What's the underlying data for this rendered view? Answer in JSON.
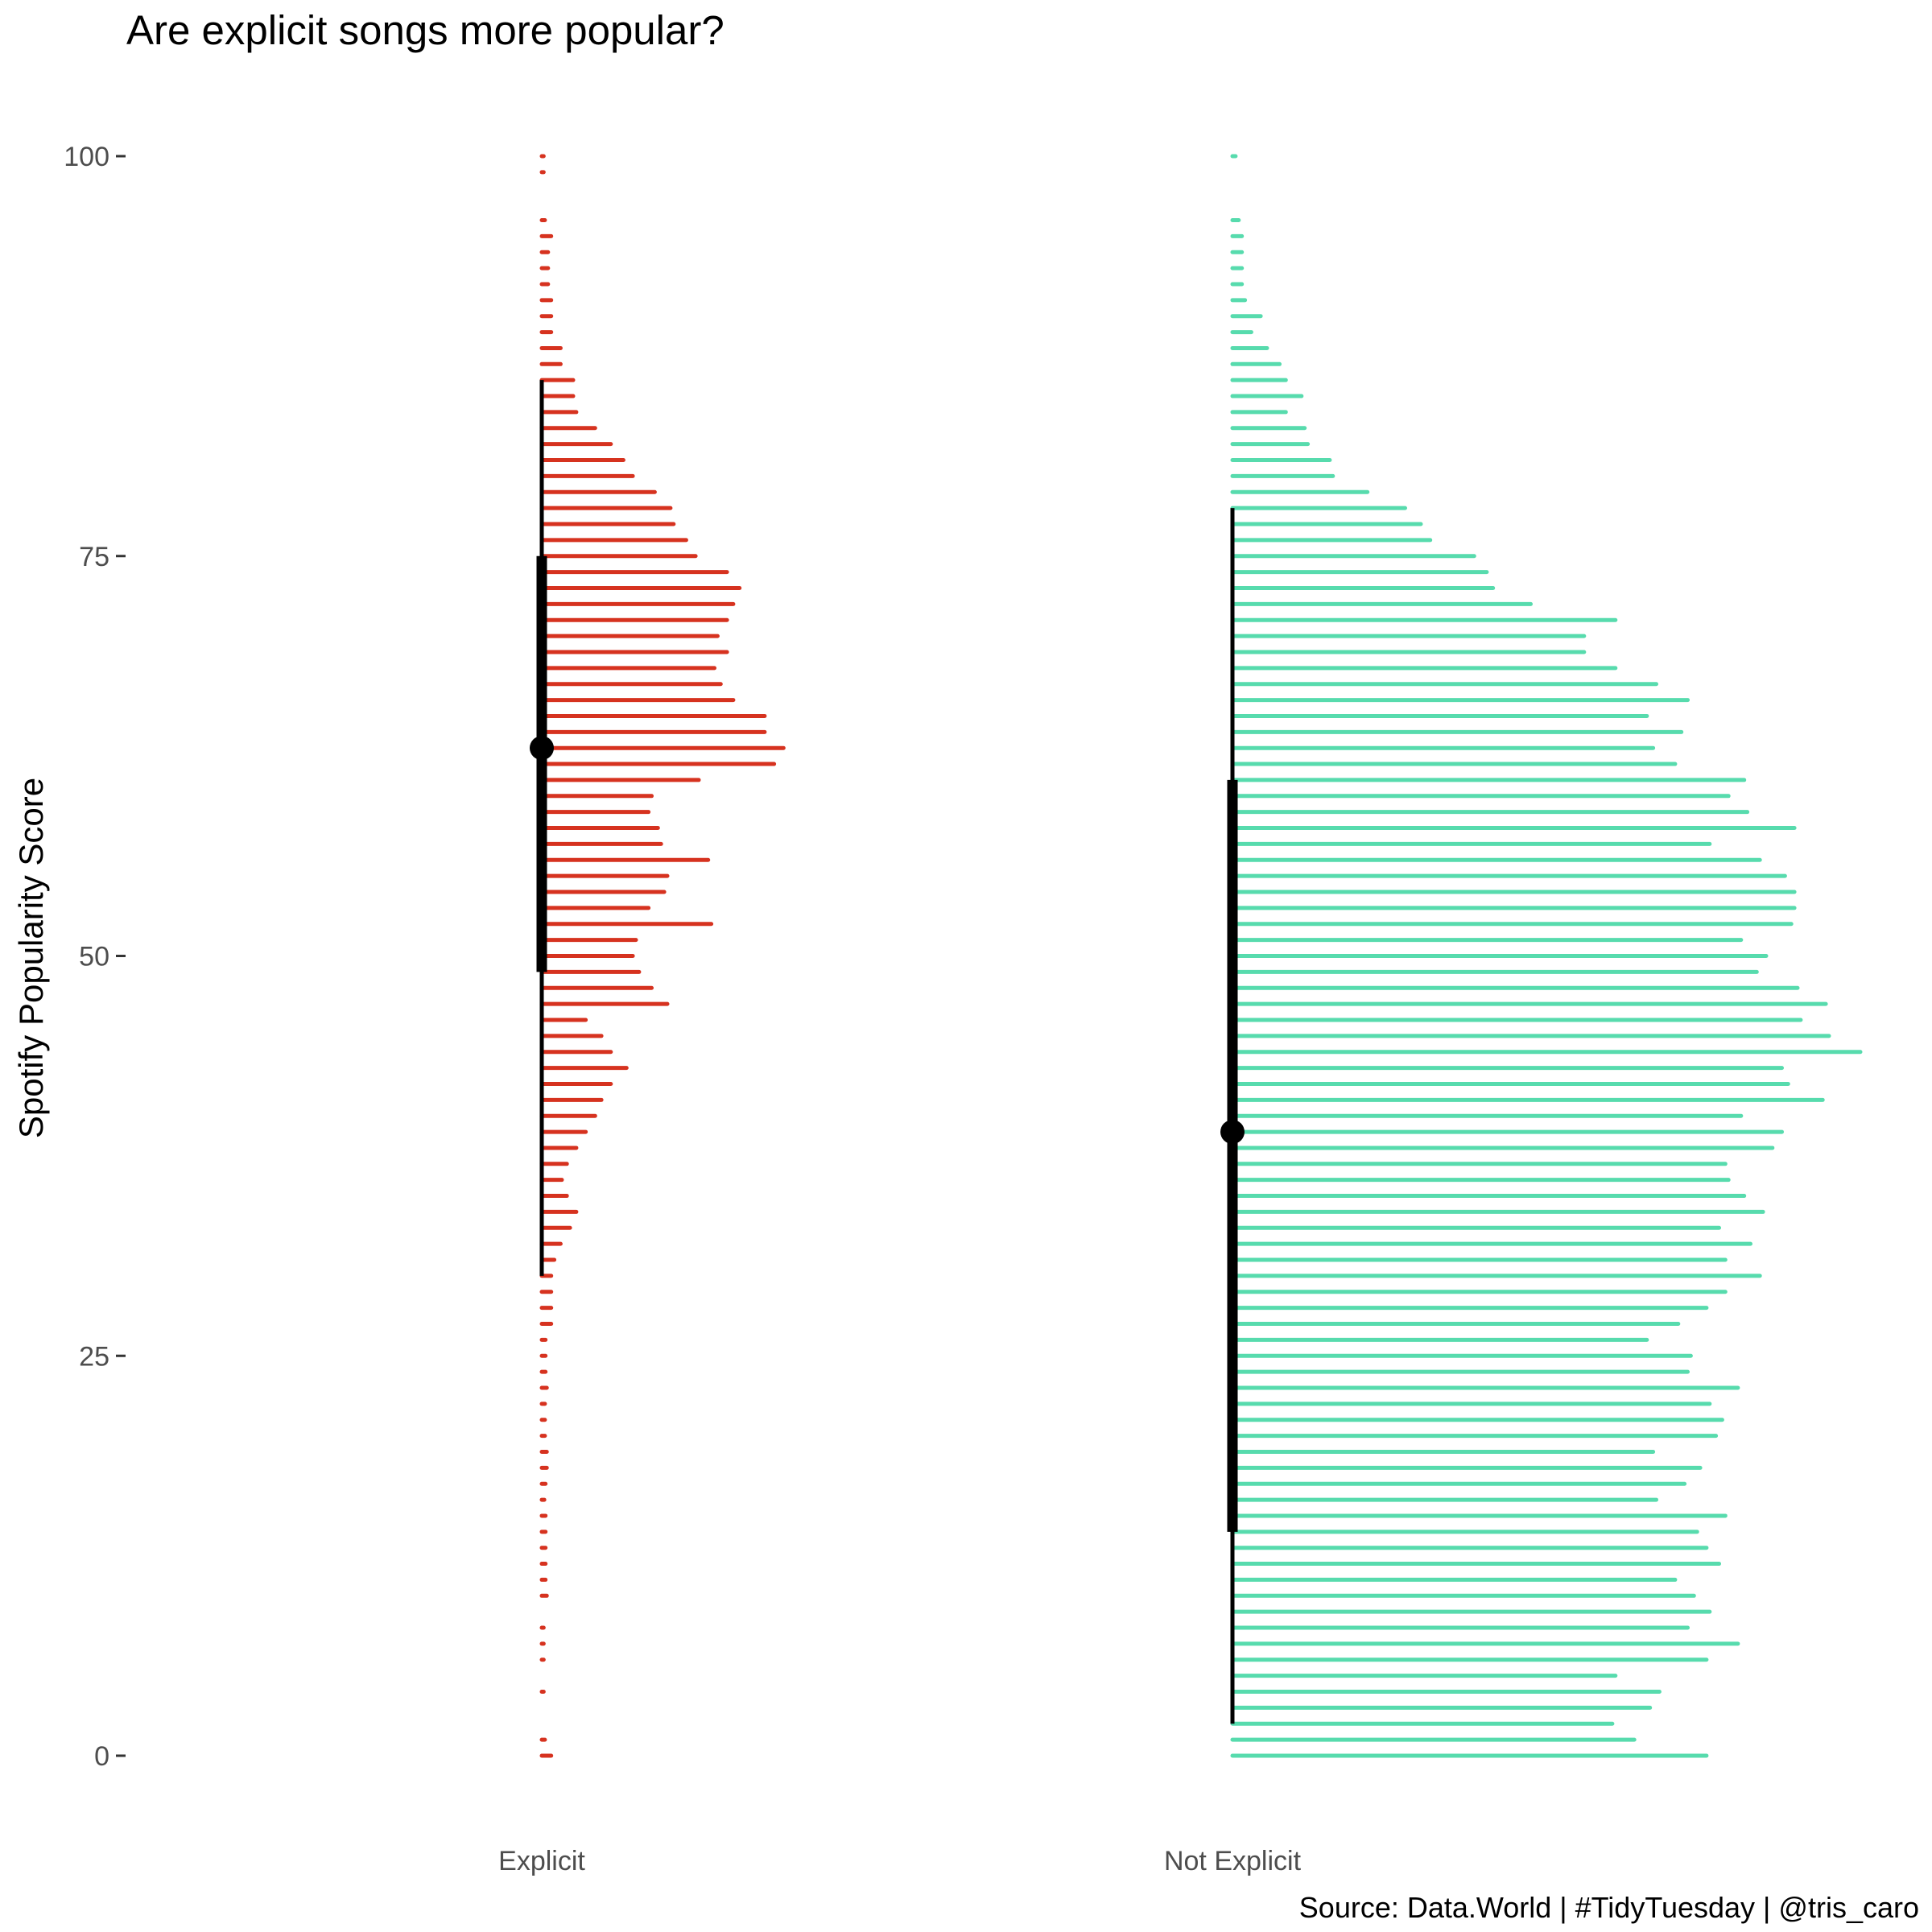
{
  "chart_data": {
    "type": "bar",
    "title": "Are explicit songs more popular?",
    "caption": "Source: Data.World | #TidyTuesday | @tris_caro",
    "ylabel": "Spotify Popularity Score",
    "xlabel": "",
    "ylim": [
      0,
      100
    ],
    "yticks": [
      "0",
      "25",
      "50",
      "75",
      "100"
    ],
    "grid": false,
    "legend": "none",
    "categories": [
      "Explicit",
      "Not Explicit"
    ],
    "bar_scale_max": 100,
    "series": [
      {
        "category": "Explicit",
        "color": "#d6321f",
        "median": 63,
        "interval_66": [
          49,
          75
        ],
        "interval_95": [
          30,
          86
        ],
        "bins": [
          [
            0,
            1.5
          ],
          [
            1,
            0.5
          ],
          [
            4,
            0.3
          ],
          [
            6,
            0.3
          ],
          [
            7,
            0.3
          ],
          [
            8,
            0.3
          ],
          [
            10,
            0.8
          ],
          [
            11,
            0.6
          ],
          [
            12,
            0.6
          ],
          [
            13,
            0.6
          ],
          [
            14,
            0.6
          ],
          [
            15,
            0.6
          ],
          [
            16,
            0.4
          ],
          [
            17,
            0.6
          ],
          [
            18,
            0.8
          ],
          [
            19,
            0.8
          ],
          [
            20,
            0.5
          ],
          [
            21,
            0.5
          ],
          [
            22,
            0.5
          ],
          [
            23,
            0.8
          ],
          [
            24,
            0.6
          ],
          [
            25,
            0.6
          ],
          [
            26,
            0.6
          ],
          [
            27,
            1.5
          ],
          [
            28,
            1.5
          ],
          [
            29,
            1.5
          ],
          [
            30,
            1.5
          ],
          [
            31,
            2.0
          ],
          [
            32,
            3.0
          ],
          [
            33,
            4.5
          ],
          [
            34,
            5.5
          ],
          [
            35,
            4.0
          ],
          [
            36,
            3.2
          ],
          [
            37,
            4.0
          ],
          [
            38,
            5.5
          ],
          [
            39,
            7.0
          ],
          [
            40,
            8.5
          ],
          [
            41,
            9.5
          ],
          [
            42,
            11.0
          ],
          [
            43,
            13.5
          ],
          [
            44,
            11.0
          ],
          [
            45,
            9.5
          ],
          [
            46,
            7.0
          ],
          [
            47,
            20.0
          ],
          [
            48,
            17.5
          ],
          [
            49,
            15.5
          ],
          [
            50,
            14.5
          ],
          [
            51,
            15.0
          ],
          [
            52,
            27.0
          ],
          [
            53,
            17.0
          ],
          [
            54,
            19.5
          ],
          [
            55,
            20.0
          ],
          [
            56,
            26.5
          ],
          [
            57,
            19.0
          ],
          [
            58,
            18.5
          ],
          [
            59,
            17.0
          ],
          [
            60,
            17.5
          ],
          [
            61,
            25.0
          ],
          [
            62,
            37.0
          ],
          [
            63,
            38.5
          ],
          [
            64,
            35.5
          ],
          [
            65,
            35.5
          ],
          [
            66,
            30.5
          ],
          [
            67,
            28.5
          ],
          [
            68,
            27.5
          ],
          [
            69,
            29.5
          ],
          [
            70,
            28.0
          ],
          [
            71,
            29.5
          ],
          [
            72,
            30.5
          ],
          [
            73,
            31.5
          ],
          [
            74,
            29.5
          ],
          [
            75,
            24.5
          ],
          [
            76,
            23.0
          ],
          [
            77,
            21.0
          ],
          [
            78,
            20.5
          ],
          [
            79,
            18.0
          ],
          [
            80,
            14.5
          ],
          [
            81,
            13.0
          ],
          [
            82,
            11.0
          ],
          [
            83,
            8.5
          ],
          [
            84,
            5.5
          ],
          [
            85,
            5.0
          ],
          [
            86,
            5.0
          ],
          [
            87,
            3.0
          ],
          [
            88,
            3.0
          ],
          [
            89,
            1.5
          ],
          [
            90,
            1.5
          ],
          [
            91,
            1.5
          ],
          [
            92,
            1.0
          ],
          [
            93,
            1.0
          ],
          [
            94,
            1.0
          ],
          [
            95,
            1.5
          ],
          [
            96,
            0.5
          ],
          [
            99,
            0.3
          ],
          [
            100,
            0.3
          ]
        ]
      },
      {
        "category": "Not Explicit",
        "color": "#57dbad",
        "median": 39,
        "interval_66": [
          14,
          61
        ],
        "interval_95": [
          2,
          78
        ],
        "bins": [
          [
            0,
            75.5
          ],
          [
            1,
            64.0
          ],
          [
            2,
            60.5
          ],
          [
            3,
            66.5
          ],
          [
            4,
            68.0
          ],
          [
            5,
            61.0
          ],
          [
            6,
            75.5
          ],
          [
            7,
            80.5
          ],
          [
            8,
            72.5
          ],
          [
            9,
            76.0
          ],
          [
            10,
            73.5
          ],
          [
            11,
            70.5
          ],
          [
            12,
            77.5
          ],
          [
            13,
            75.5
          ],
          [
            14,
            74.0
          ],
          [
            15,
            78.5
          ],
          [
            16,
            67.5
          ],
          [
            17,
            72.0
          ],
          [
            18,
            74.5
          ],
          [
            19,
            67.0
          ],
          [
            20,
            77.0
          ],
          [
            21,
            78.0
          ],
          [
            22,
            76.0
          ],
          [
            23,
            80.5
          ],
          [
            24,
            72.5
          ],
          [
            25,
            73.0
          ],
          [
            26,
            66.0
          ],
          [
            27,
            71.0
          ],
          [
            28,
            75.5
          ],
          [
            29,
            78.5
          ],
          [
            30,
            84.0
          ],
          [
            31,
            78.5
          ],
          [
            32,
            82.5
          ],
          [
            33,
            77.5
          ],
          [
            34,
            84.5
          ],
          [
            35,
            81.5
          ],
          [
            36,
            79.0
          ],
          [
            37,
            78.5
          ],
          [
            38,
            86.0
          ],
          [
            39,
            87.5
          ],
          [
            40,
            81.0
          ],
          [
            41,
            94.0
          ],
          [
            42,
            88.5
          ],
          [
            43,
            87.5
          ],
          [
            44,
            100.0
          ],
          [
            45,
            95.0
          ],
          [
            46,
            90.5
          ],
          [
            47,
            94.5
          ],
          [
            48,
            90.0
          ],
          [
            49,
            83.5
          ],
          [
            50,
            85.0
          ],
          [
            51,
            81.0
          ],
          [
            52,
            89.0
          ],
          [
            53,
            89.5
          ],
          [
            54,
            89.5
          ],
          [
            55,
            88.0
          ],
          [
            56,
            84.0
          ],
          [
            57,
            76.0
          ],
          [
            58,
            89.5
          ],
          [
            59,
            82.0
          ],
          [
            60,
            79.0
          ],
          [
            61,
            81.5
          ],
          [
            62,
            70.5
          ],
          [
            63,
            67.0
          ],
          [
            64,
            71.5
          ],
          [
            65,
            66.0
          ],
          [
            66,
            72.5
          ],
          [
            67,
            67.5
          ],
          [
            68,
            61.0
          ],
          [
            69,
            56.0
          ],
          [
            70,
            56.0
          ],
          [
            71,
            61.0
          ],
          [
            72,
            47.5
          ],
          [
            73,
            41.5
          ],
          [
            74,
            40.5
          ],
          [
            75,
            38.5
          ],
          [
            76,
            31.5
          ],
          [
            77,
            30.0
          ],
          [
            78,
            27.5
          ],
          [
            79,
            21.5
          ],
          [
            80,
            16.0
          ],
          [
            81,
            15.5
          ],
          [
            82,
            12.0
          ],
          [
            83,
            11.5
          ],
          [
            84,
            8.5
          ],
          [
            85,
            11.0
          ],
          [
            86,
            8.5
          ],
          [
            87,
            7.5
          ],
          [
            88,
            5.5
          ],
          [
            89,
            3.0
          ],
          [
            90,
            4.5
          ],
          [
            91,
            2.0
          ],
          [
            92,
            1.5
          ],
          [
            93,
            1.5
          ],
          [
            94,
            1.5
          ],
          [
            95,
            1.5
          ],
          [
            96,
            1.0
          ],
          [
            100,
            0.5
          ]
        ]
      }
    ]
  }
}
